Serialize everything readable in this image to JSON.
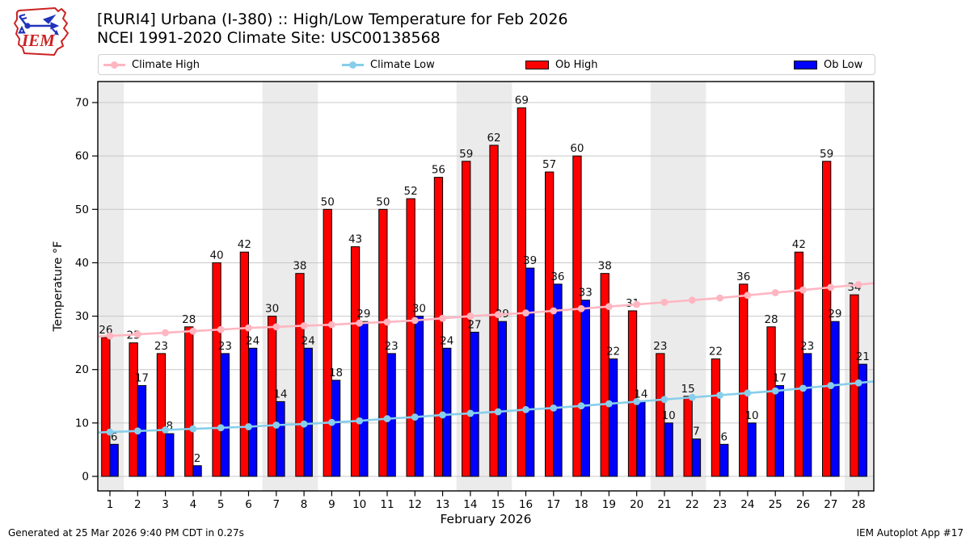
{
  "header": {
    "logo_text": "IEM",
    "title_line1": "[RURI4] Urbana (I-380) :: High/Low Temperature for Feb 2026",
    "title_line2": "NCEI 1991-2020 Climate Site: USC00138568"
  },
  "legend": {
    "items": [
      {
        "label": "Climate High",
        "type": "line",
        "color": "#ffb6c1"
      },
      {
        "label": "Climate Low",
        "type": "line",
        "color": "#87ceeb"
      },
      {
        "label": "Ob High",
        "type": "patch",
        "color": "#ff0000"
      },
      {
        "label": "Ob Low",
        "type": "patch",
        "color": "#0000ff"
      }
    ]
  },
  "chart_data": {
    "type": "bar",
    "title": "",
    "xlabel": "February 2026",
    "ylabel": "Temperature °F",
    "ylim": [
      -2.7,
      73.9
    ],
    "yticks": [
      0,
      10,
      20,
      30,
      40,
      50,
      60,
      70
    ],
    "grid": true,
    "legend_position": "top",
    "categories": [
      1,
      2,
      3,
      4,
      5,
      6,
      7,
      8,
      9,
      10,
      11,
      12,
      13,
      14,
      15,
      16,
      17,
      18,
      19,
      20,
      21,
      22,
      23,
      24,
      25,
      26,
      27,
      28
    ],
    "series": [
      {
        "name": "Ob High",
        "type": "bar",
        "color": "#ff0000",
        "values": [
          26,
          25,
          23,
          28,
          40,
          42,
          30,
          38,
          50,
          43,
          50,
          52,
          56,
          59,
          62,
          69,
          57,
          60,
          38,
          31,
          23,
          15,
          22,
          36,
          28,
          42,
          59,
          34
        ]
      },
      {
        "name": "Ob Low",
        "type": "bar",
        "color": "#0000ff",
        "values": [
          6,
          17,
          8,
          2,
          23,
          24,
          14,
          24,
          18,
          29,
          23,
          30,
          24,
          27,
          29,
          39,
          36,
          33,
          22,
          14,
          10,
          7,
          6,
          10,
          17,
          23,
          29,
          21
        ]
      },
      {
        "name": "Climate High",
        "type": "line",
        "color": "#ffb6c1",
        "values": [
          26.3,
          26.6,
          26.9,
          27.2,
          27.5,
          27.8,
          28.0,
          28.2,
          28.4,
          28.7,
          28.9,
          29.2,
          29.6,
          30.0,
          30.3,
          30.6,
          31.0,
          31.4,
          31.8,
          32.2,
          32.6,
          33.0,
          33.4,
          33.9,
          34.4,
          34.9,
          35.4,
          35.9
        ]
      },
      {
        "name": "Climate Low",
        "type": "line",
        "color": "#87ceeb",
        "values": [
          8.3,
          8.5,
          8.7,
          8.9,
          9.1,
          9.3,
          9.6,
          9.8,
          10.1,
          10.4,
          10.8,
          11.1,
          11.5,
          11.8,
          12.1,
          12.5,
          12.8,
          13.2,
          13.6,
          14.0,
          14.4,
          14.8,
          15.2,
          15.6,
          16.0,
          16.5,
          17.0,
          17.5
        ]
      }
    ],
    "weekend_bands_days": [
      [
        0.5,
        1.5
      ],
      [
        6.5,
        8.5
      ],
      [
        13.5,
        15.5
      ],
      [
        20.5,
        22.5
      ],
      [
        27.5,
        28.5
      ]
    ],
    "band_color": "#ebebeb",
    "grid_color": "#c8c8c8",
    "label_color": "#111111"
  },
  "footer": {
    "left": "Generated at 25 Mar 2026 9:40 PM CDT in 0.27s",
    "right": "IEM Autoplot App #17"
  }
}
